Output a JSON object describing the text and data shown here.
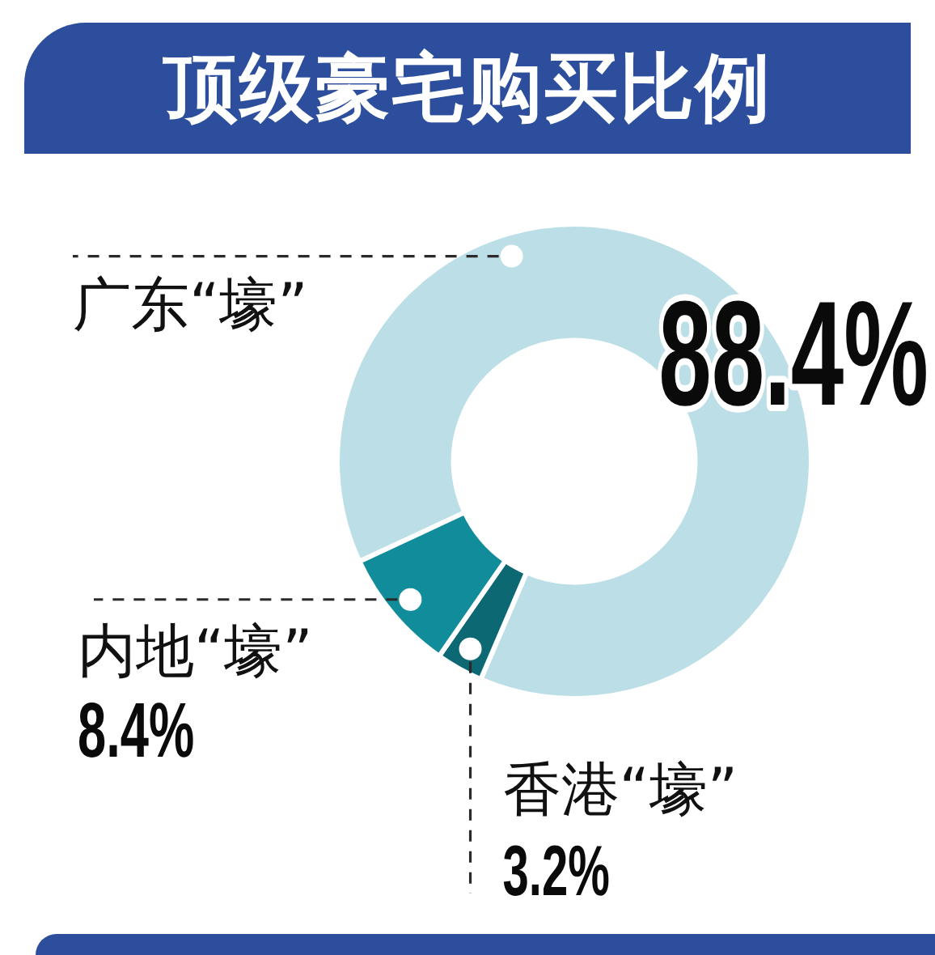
{
  "chart_data": {
    "type": "donut",
    "title": "顶级豪宅购买比例",
    "categories": [
      "广东“壕”",
      "香港“壕”",
      "内地“壕”"
    ],
    "values": [
      88.4,
      3.2,
      8.4
    ],
    "colors": [
      "#bcdfe7",
      "#0c6872",
      "#118c9a"
    ],
    "value_labels": [
      "88.4%",
      "3.2%",
      "8.4%"
    ]
  }
}
